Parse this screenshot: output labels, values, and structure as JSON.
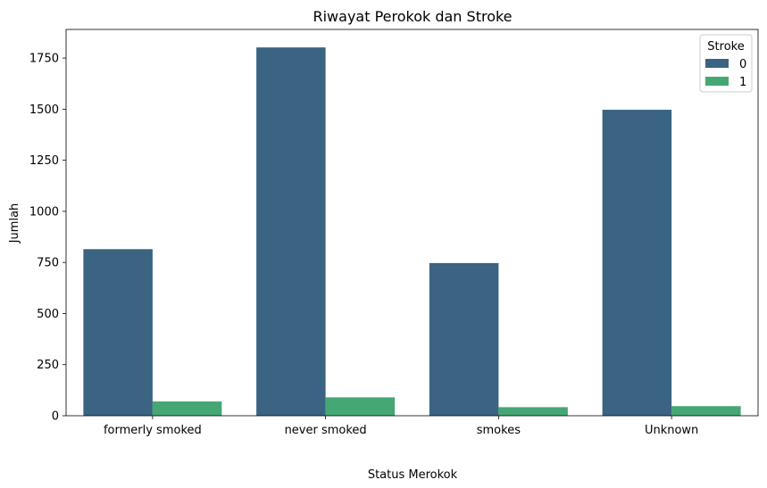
{
  "chart_data": {
    "type": "bar",
    "title": "Riwayat Perokok dan Stroke",
    "xlabel": "Status Merokok",
    "ylabel": "Jumlah",
    "categories": [
      "formerly smoked",
      "never smoked",
      "smokes",
      "Unknown"
    ],
    "series": [
      {
        "name": "0",
        "color": "#3b6382",
        "values": [
          815,
          1802,
          747,
          1497
        ]
      },
      {
        "name": "1",
        "color": "#45a774",
        "values": [
          70,
          90,
          42,
          47
        ]
      }
    ],
    "ylim": [
      0,
      1890
    ],
    "yticks": [
      0,
      250,
      500,
      750,
      1000,
      1250,
      1500,
      1750
    ],
    "ytick_labels": [
      "0",
      "250",
      "500",
      "750",
      "1000",
      "1250",
      "1500",
      "1750"
    ],
    "legend": {
      "title": "Stroke",
      "position": "top-right"
    },
    "grid": false
  }
}
